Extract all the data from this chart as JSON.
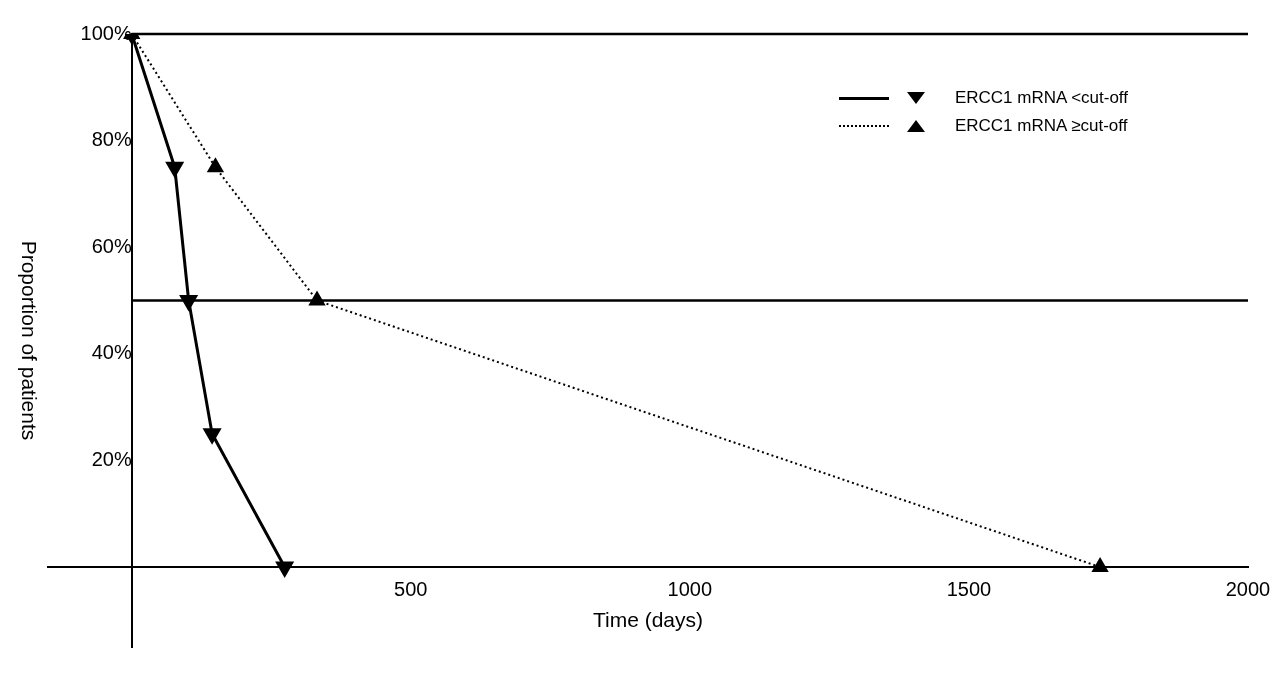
{
  "chart_data": {
    "type": "line",
    "xlabel": "Time (days)",
    "ylabel": "Proportion of patients",
    "xlim": [
      -150,
      2000
    ],
    "xticks": [
      500,
      1000,
      1500,
      2000
    ],
    "ylim": [
      -15,
      100
    ],
    "yticks": [
      {
        "value": 20,
        "label": "20%"
      },
      {
        "value": 40,
        "label": "40%"
      },
      {
        "value": 60,
        "label": "60%"
      },
      {
        "value": 80,
        "label": "80%"
      },
      {
        "value": 100,
        "label": "100%"
      }
    ],
    "series": [
      {
        "name": "ERCC1 mRNA <cut-off",
        "color": "#000000",
        "line_style": "solid",
        "marker": "triangle",
        "x": [
          0,
          77,
          102,
          144,
          274
        ],
        "values": [
          100,
          75,
          50,
          25,
          0
        ]
      },
      {
        "name": "ERCC1 mRNA ≥cut-off",
        "color": "#000000",
        "line_style": "dotted",
        "marker": "triangle",
        "x": [
          0,
          150,
          332,
          1735
        ],
        "values": [
          100,
          75,
          50,
          0
        ]
      }
    ],
    "ref_lines": [
      {
        "axis": "y",
        "value": 100,
        "label": null
      },
      {
        "axis": "y",
        "value": 50,
        "label": null
      }
    ],
    "legend": "top right",
    "grid": false
  }
}
